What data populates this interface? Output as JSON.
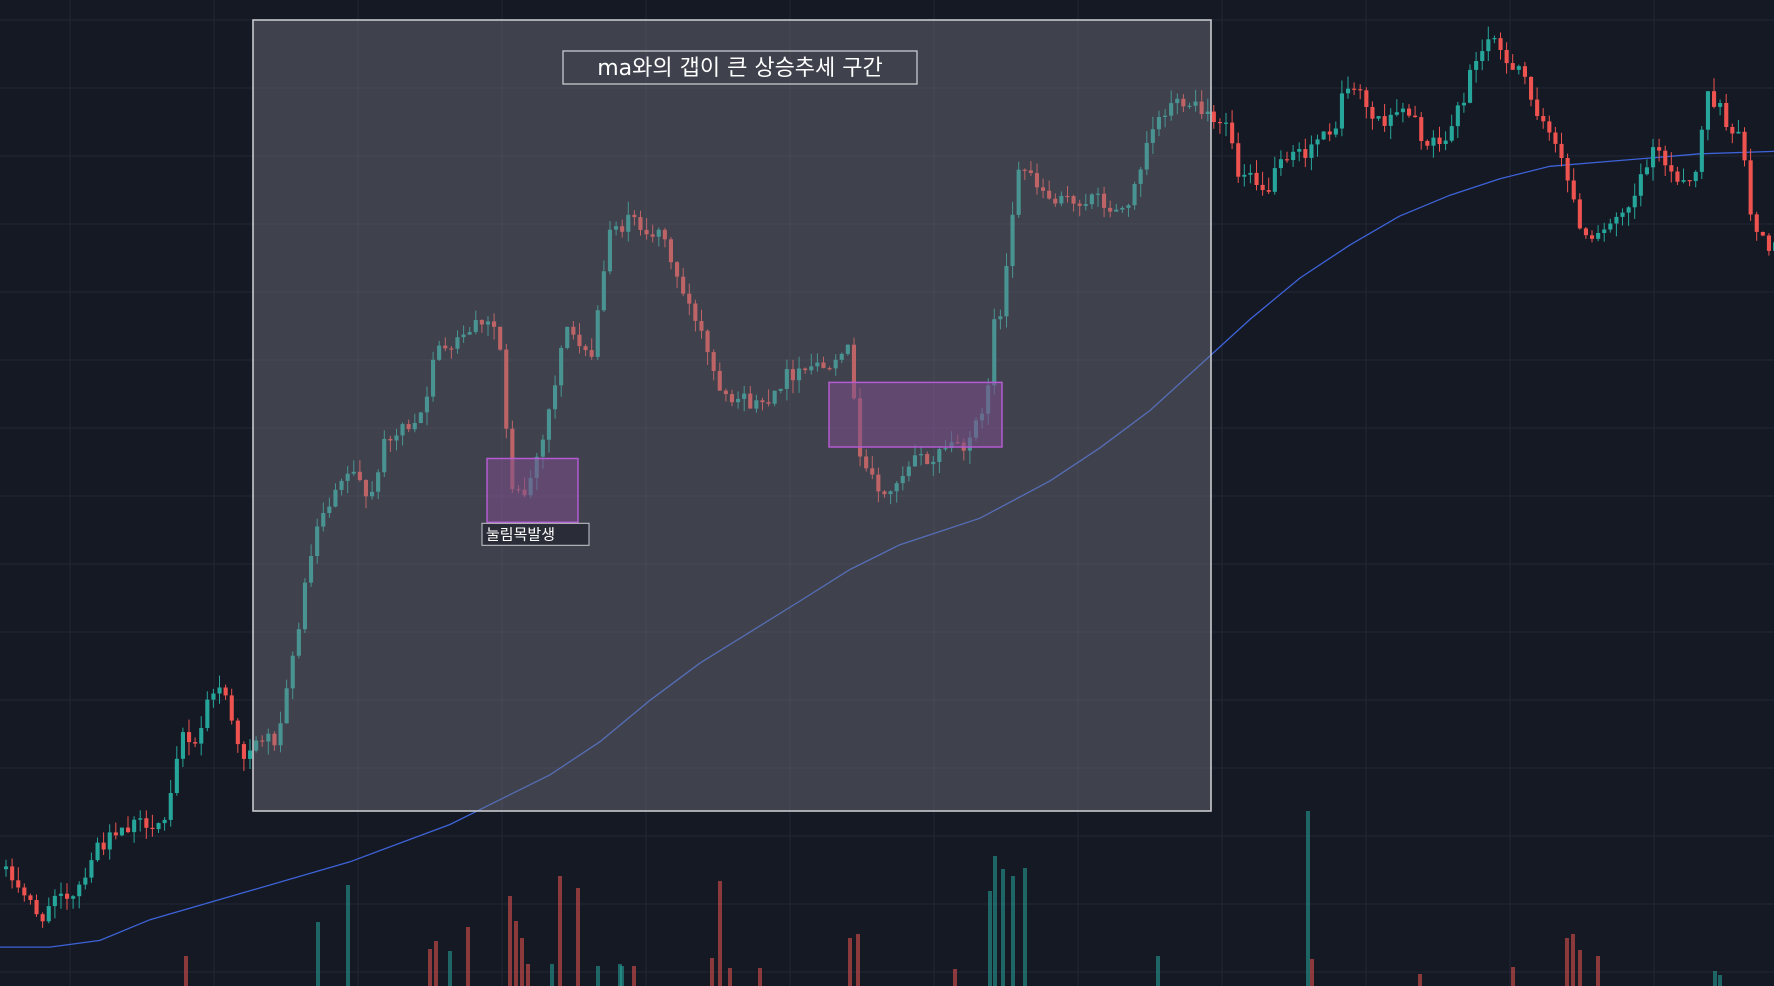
{
  "chart_data": {
    "type": "candlestick",
    "xlabel": "",
    "ylabel": "",
    "y_range": [
      0,
      100
    ],
    "grid": true,
    "colors": {
      "background": "#151924",
      "grid": "#232735",
      "up": "#26a69a",
      "down": "#ef5350",
      "ma": "#3d63d8",
      "highlight_fill": "#7a7c88",
      "highlight_border": "#c8c9cf",
      "box_fill": "#7b4f8c",
      "box_border": "#b45ad2",
      "label_text": "#ffffff"
    },
    "price_points": [
      [
        0,
        10.6
      ],
      [
        20,
        9.2
      ],
      [
        40,
        4.8
      ],
      [
        80,
        8.3
      ],
      [
        100,
        13.5
      ],
      [
        120,
        14.5
      ],
      [
        150,
        16.5
      ],
      [
        170,
        16.0
      ],
      [
        185,
        27.0
      ],
      [
        200,
        26.0
      ],
      [
        215,
        32.8
      ],
      [
        230,
        31.5
      ],
      [
        248,
        23.0
      ],
      [
        262,
        26.5
      ],
      [
        282,
        26.0
      ],
      [
        300,
        39.0
      ],
      [
        318,
        51.0
      ],
      [
        340,
        55.8
      ],
      [
        350,
        58.4
      ],
      [
        375,
        56.2
      ],
      [
        385,
        61.2
      ],
      [
        410,
        64.2
      ],
      [
        425,
        66.2
      ],
      [
        440,
        73.2
      ],
      [
        470,
        76.0
      ],
      [
        490,
        77.4
      ],
      [
        502,
        75.2
      ],
      [
        514,
        55.8
      ],
      [
        530,
        56.1
      ],
      [
        545,
        62.8
      ],
      [
        560,
        70.2
      ],
      [
        570,
        76.7
      ],
      [
        592,
        71.4
      ],
      [
        612,
        87.0
      ],
      [
        630,
        89.0
      ],
      [
        650,
        88.3
      ],
      [
        670,
        85.8
      ],
      [
        690,
        78.6
      ],
      [
        704,
        76.3
      ],
      [
        720,
        69.6
      ],
      [
        740,
        67.6
      ],
      [
        765,
        66.7
      ],
      [
        780,
        69.2
      ],
      [
        800,
        71.0
      ],
      [
        810,
        71.9
      ],
      [
        828,
        71.2
      ],
      [
        843,
        74.0
      ],
      [
        855,
        72.4
      ],
      [
        860,
        62.1
      ],
      [
        880,
        56.0
      ],
      [
        900,
        56.5
      ],
      [
        920,
        60.3
      ],
      [
        935,
        59.9
      ],
      [
        950,
        62.2
      ],
      [
        965,
        61.9
      ],
      [
        988,
        65.2
      ],
      [
        995,
        75.5
      ],
      [
        1005,
        78.1
      ],
      [
        1012,
        87.6
      ],
      [
        1022,
        96.0
      ],
      [
        1040,
        92.8
      ],
      [
        1060,
        90.8
      ],
      [
        1078,
        91.3
      ],
      [
        1098,
        91.6
      ],
      [
        1120,
        89.6
      ],
      [
        1140,
        92.8
      ],
      [
        1155,
        99.7
      ],
      [
        1175,
        103.0
      ],
      [
        1190,
        104.0
      ],
      [
        1210,
        102.2
      ],
      [
        1222,
        101.3
      ],
      [
        1232,
        100.1
      ],
      [
        1242,
        93.5
      ],
      [
        1250,
        94.1
      ],
      [
        1265,
        92.0
      ],
      [
        1282,
        95.1
      ],
      [
        1300,
        96.7
      ],
      [
        1320,
        98.6
      ],
      [
        1335,
        99.0
      ],
      [
        1348,
        105.3
      ],
      [
        1362,
        104.3
      ],
      [
        1380,
        100.6
      ],
      [
        1400,
        102.5
      ],
      [
        1420,
        100.5
      ],
      [
        1432,
        97.6
      ],
      [
        1450,
        98.8
      ],
      [
        1467,
        104.1
      ],
      [
        1478,
        108.3
      ],
      [
        1490,
        110.9
      ],
      [
        1510,
        108.2
      ],
      [
        1525,
        107.9
      ],
      [
        1540,
        100.7
      ],
      [
        1562,
        98.6
      ],
      [
        1578,
        89.9
      ],
      [
        1590,
        87.2
      ],
      [
        1605,
        88.1
      ],
      [
        1620,
        88.4
      ],
      [
        1635,
        90.3
      ],
      [
        1645,
        94.7
      ],
      [
        1660,
        97.5
      ],
      [
        1680,
        94.1
      ],
      [
        1700,
        94.4
      ],
      [
        1710,
        104.8
      ],
      [
        1728,
        101.5
      ],
      [
        1745,
        98.4
      ],
      [
        1755,
        88.2
      ],
      [
        1765,
        86.6
      ],
      [
        1774,
        86.0
      ]
    ],
    "ma_points": [
      [
        0,
        1.2
      ],
      [
        50,
        1.2
      ],
      [
        100,
        2.0
      ],
      [
        150,
        4.5
      ],
      [
        250,
        8.0
      ],
      [
        350,
        11.5
      ],
      [
        450,
        16.0
      ],
      [
        550,
        22.0
      ],
      [
        600,
        26.0
      ],
      [
        650,
        31.0
      ],
      [
        700,
        35.5
      ],
      [
        800,
        43.0
      ],
      [
        850,
        46.8
      ],
      [
        900,
        49.8
      ],
      [
        980,
        53.0
      ],
      [
        1050,
        57.5
      ],
      [
        1100,
        61.5
      ],
      [
        1150,
        66.0
      ],
      [
        1200,
        71.5
      ],
      [
        1250,
        77.0
      ],
      [
        1300,
        82.0
      ],
      [
        1350,
        86.0
      ],
      [
        1400,
        89.5
      ],
      [
        1450,
        92.0
      ],
      [
        1500,
        94.0
      ],
      [
        1550,
        95.5
      ],
      [
        1600,
        96.0
      ],
      [
        1650,
        96.5
      ],
      [
        1700,
        97.0
      ],
      [
        1774,
        97.3
      ]
    ],
    "volume_bars": [
      [
        186,
        30,
        "down"
      ],
      [
        318,
        64,
        "up"
      ],
      [
        348,
        101,
        "up"
      ],
      [
        430,
        37,
        "down"
      ],
      [
        436,
        45,
        "down"
      ],
      [
        450,
        35,
        "up"
      ],
      [
        468,
        59,
        "down"
      ],
      [
        510,
        90,
        "down"
      ],
      [
        516,
        65,
        "down"
      ],
      [
        522,
        48,
        "down"
      ],
      [
        528,
        22,
        "down"
      ],
      [
        552,
        22,
        "up"
      ],
      [
        560,
        110,
        "down"
      ],
      [
        578,
        98,
        "down"
      ],
      [
        598,
        20,
        "up"
      ],
      [
        620,
        22,
        "up"
      ],
      [
        622,
        20,
        "up"
      ],
      [
        634,
        20,
        "down"
      ],
      [
        712,
        28,
        "down"
      ],
      [
        720,
        105,
        "down"
      ],
      [
        730,
        18,
        "down"
      ],
      [
        760,
        18,
        "down"
      ],
      [
        850,
        48,
        "down"
      ],
      [
        858,
        52,
        "down"
      ],
      [
        955,
        17,
        "down"
      ],
      [
        990,
        95,
        "up"
      ],
      [
        995,
        130,
        "up"
      ],
      [
        1003,
        117,
        "up"
      ],
      [
        1013,
        110,
        "up"
      ],
      [
        1025,
        118,
        "up"
      ],
      [
        1158,
        30,
        "up"
      ],
      [
        1308,
        175,
        "up"
      ],
      [
        1312,
        27,
        "down"
      ],
      [
        1420,
        12,
        "down"
      ],
      [
        1513,
        19,
        "down"
      ],
      [
        1567,
        48,
        "down"
      ],
      [
        1573,
        52,
        "down"
      ],
      [
        1580,
        36,
        "down"
      ],
      [
        1598,
        30,
        "down"
      ],
      [
        1715,
        15,
        "up"
      ],
      [
        1720,
        11,
        "up"
      ]
    ],
    "annotations": {
      "main_region": {
        "label": "ma와의 갭이 큰 상승추세 구간",
        "x_range": [
          253,
          1211
        ]
      },
      "pullback_1": {
        "label": "눌림목발생",
        "x_range": [
          487,
          578
        ],
        "y_range": [
          52.5,
          60.2
        ]
      },
      "pullback_2": {
        "label": "",
        "x_range": [
          829,
          1002
        ],
        "y_range": [
          61.6,
          69.4
        ]
      }
    }
  }
}
